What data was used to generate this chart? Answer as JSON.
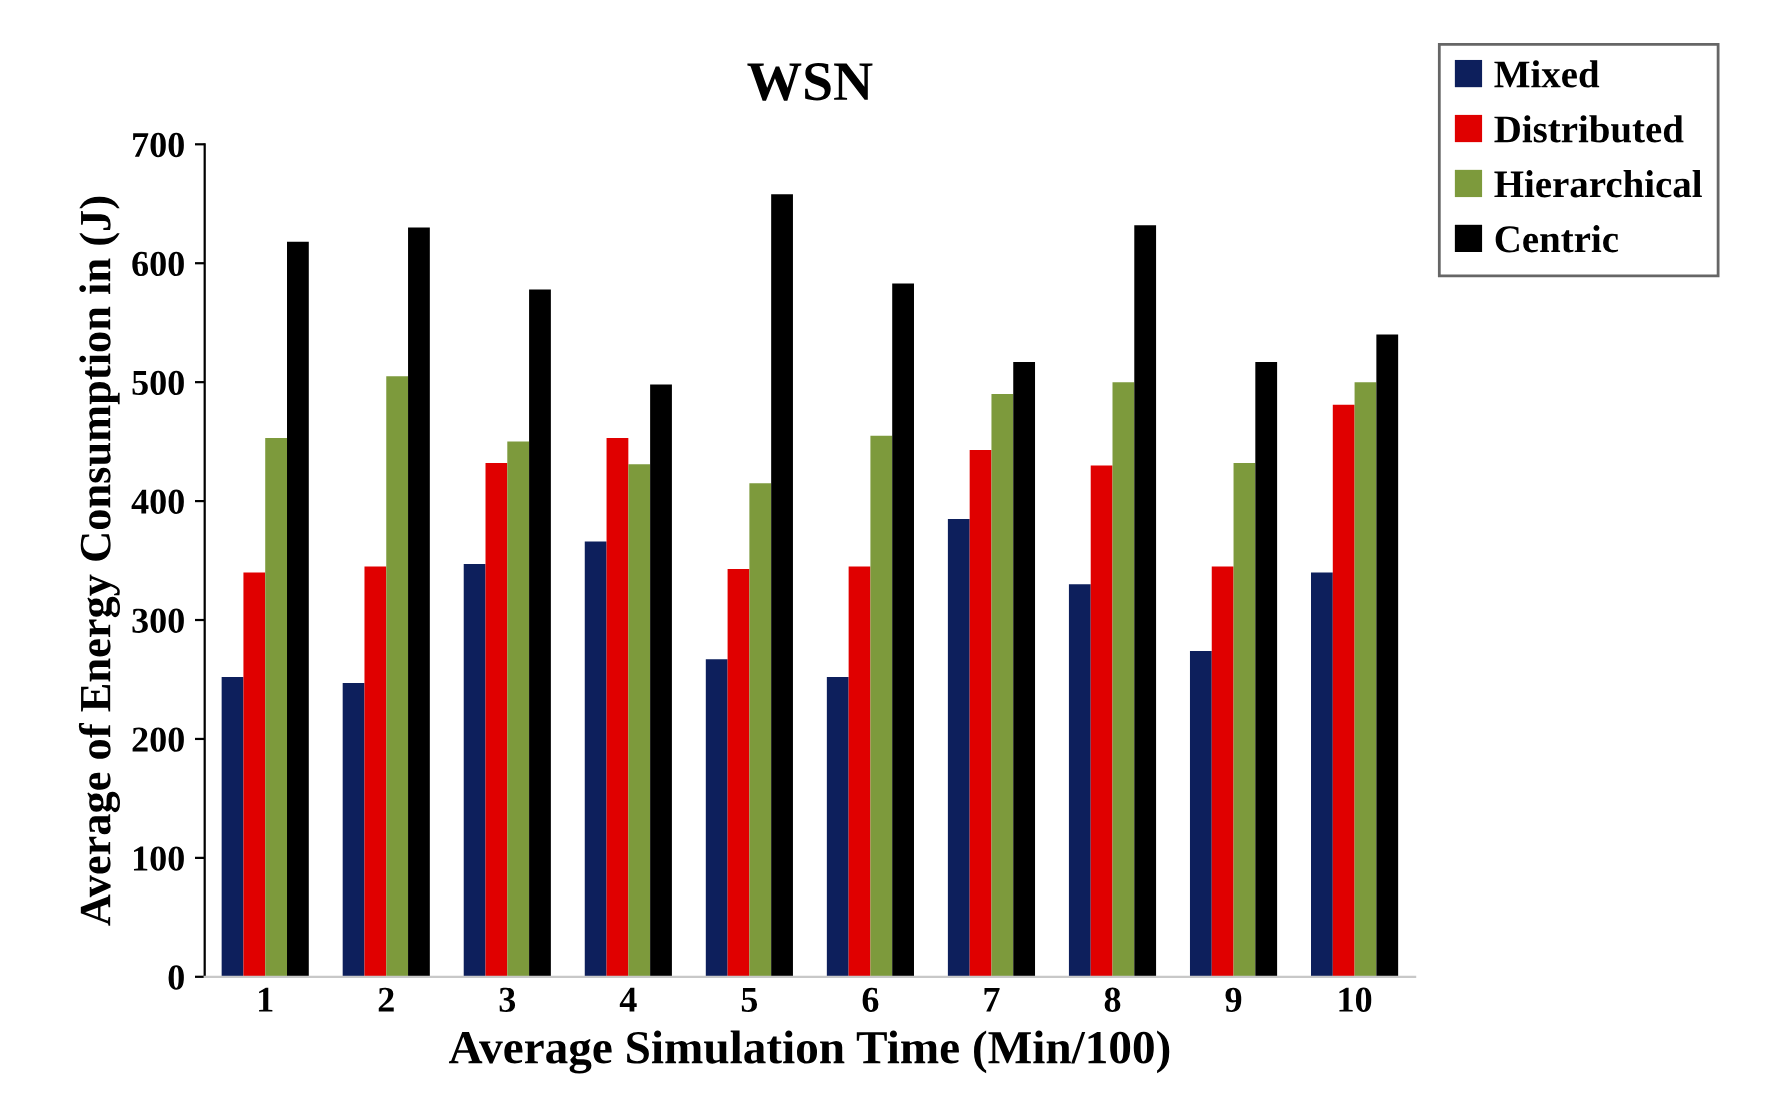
{
  "chart_data": {
    "type": "bar",
    "title": "WSN",
    "xlabel": "Average Simulation Time (Min/100)",
    "ylabel": "Average of Energy Consumption in (J)",
    "categories": [
      "1",
      "2",
      "3",
      "4",
      "5",
      "6",
      "7",
      "8",
      "9",
      "10"
    ],
    "series": [
      {
        "name": "Mixed",
        "color": "#0d1f5c",
        "values": [
          252,
          247,
          347,
          366,
          267,
          252,
          385,
          330,
          274,
          340
        ]
      },
      {
        "name": "Distributed",
        "color": "#e00000",
        "values": [
          340,
          345,
          432,
          453,
          343,
          345,
          443,
          430,
          345,
          481
        ]
      },
      {
        "name": "Hierarchical",
        "color": "#7d9a3c",
        "values": [
          453,
          505,
          450,
          431,
          415,
          455,
          490,
          500,
          432,
          500
        ]
      },
      {
        "name": "Centric",
        "color": "#000000",
        "values": [
          618,
          630,
          578,
          498,
          658,
          583,
          517,
          632,
          517,
          540
        ]
      }
    ],
    "ylim": [
      0,
      700
    ],
    "yticks": [
      0,
      100,
      200,
      300,
      400,
      500,
      600,
      700
    ],
    "grid": false,
    "legend": "top right"
  }
}
